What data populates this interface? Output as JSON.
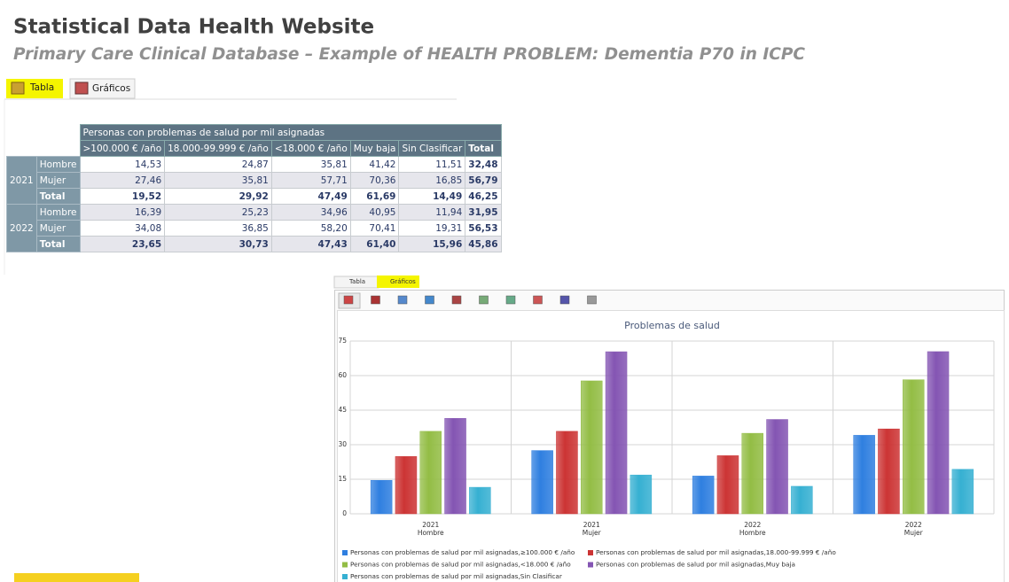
{
  "header": {
    "title": "Statistical Data Health Website",
    "subtitle": "Primary Care Clinical Database – Example of HEALTH PROBLEM: Dementia P70 in ICPC"
  },
  "tabs": [
    "Tabla",
    "Gráficos"
  ],
  "table": {
    "caption": "Personas con problemas de salud por mil asignadas",
    "columns": [
      ">100.000 € /año",
      "18.000-99.999 € /año",
      "<18.000 € /año",
      "Muy baja",
      "Sin Clasificar",
      "Total"
    ],
    "groups": [
      {
        "year": "2021",
        "rows": [
          {
            "label": "Hombre",
            "cells": [
              "14,53",
              "24,87",
              "35,81",
              "41,42",
              "11,51",
              "32,48"
            ]
          },
          {
            "label": "Mujer",
            "cells": [
              "27,46",
              "35,81",
              "57,71",
              "70,36",
              "16,85",
              "56,79"
            ]
          },
          {
            "label": "Total",
            "cells": [
              "19,52",
              "29,92",
              "47,49",
              "61,69",
              "14,49",
              "46,25"
            ]
          }
        ]
      },
      {
        "year": "2022",
        "rows": [
          {
            "label": "Hombre",
            "cells": [
              "16,39",
              "25,23",
              "34,96",
              "40,95",
              "11,94",
              "31,95"
            ]
          },
          {
            "label": "Mujer",
            "cells": [
              "34,08",
              "36,85",
              "58,20",
              "70,41",
              "19,31",
              "56,53"
            ]
          },
          {
            "label": "Total",
            "cells": [
              "23,65",
              "30,73",
              "47,43",
              "61,40",
              "15,96",
              "45,86"
            ]
          }
        ]
      }
    ]
  },
  "chart_tabs": [
    "Tabla",
    "Gráficos"
  ],
  "chart_data": {
    "type": "bar",
    "title": "Problemas de salud",
    "categories": [
      [
        "2021",
        "Hombre"
      ],
      [
        "2021",
        "Mujer"
      ],
      [
        "2022",
        "Hombre"
      ],
      [
        "2022",
        "Mujer"
      ]
    ],
    "series": [
      {
        "name": "Personas con problemas de salud por mil asignadas,≥100.000 € /año",
        "color": "#2f7fe0",
        "values": [
          14.53,
          27.46,
          16.39,
          34.08
        ]
      },
      {
        "name": "Personas con problemas de salud por mil asignadas,18.000-99.999 € /año",
        "color": "#cc3434",
        "values": [
          24.87,
          35.81,
          25.23,
          36.85
        ]
      },
      {
        "name": "Personas con problemas de salud por mil asignadas,<18.000 € /año",
        "color": "#93bd45",
        "values": [
          35.81,
          57.71,
          34.96,
          58.2
        ]
      },
      {
        "name": "Personas con problemas de salud por mil asignadas,Muy baja",
        "color": "#8455b3",
        "values": [
          41.42,
          70.36,
          40.95,
          70.41
        ]
      },
      {
        "name": "Personas con problemas de salud por mil asignadas,Sin Clasificar",
        "color": "#36b0d2",
        "values": [
          11.51,
          16.85,
          11.94,
          19.31
        ]
      }
    ],
    "ylim": [
      0,
      75
    ],
    "yticks": [
      0,
      15,
      30,
      45,
      60,
      75
    ],
    "grid": true
  }
}
